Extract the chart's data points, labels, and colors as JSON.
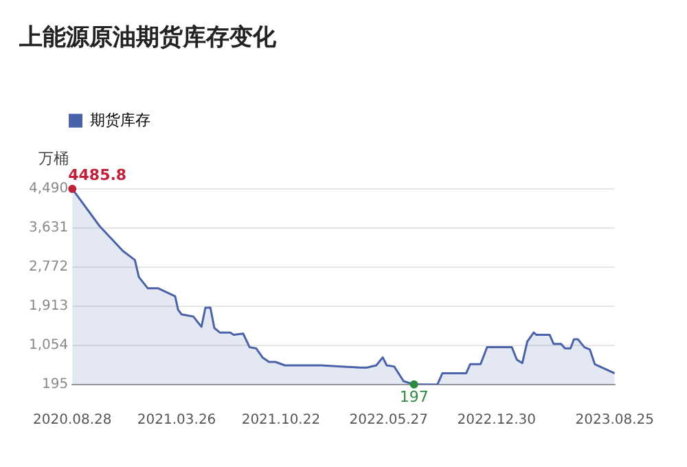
{
  "chart_data": {
    "type": "area",
    "title": "上能源原油期货库存变化",
    "ylabel": "万桶",
    "legend": "top left",
    "grid": "y",
    "marker": "none",
    "line_style": "solid",
    "x": [
      "2020-08-28",
      "2020-10-22",
      "2020-12-08",
      "2021-01-01",
      "2021-01-09",
      "2021-01-27",
      "2021-02-17",
      "2021-03-23",
      "2021-03-29",
      "2021-04-05",
      "2021-04-29",
      "2021-05-15",
      "2021-05-23",
      "2021-06-02",
      "2021-06-10",
      "2021-06-21",
      "2021-07-12",
      "2021-07-19",
      "2021-08-07",
      "2021-08-20",
      "2021-09-02",
      "2021-09-15",
      "2021-09-28",
      "2021-10-11",
      "2021-10-30",
      "2022-01-11",
      "2022-03-31",
      "2022-04-13",
      "2022-05-02",
      "2022-05-15",
      "2022-05-23",
      "2022-06-07",
      "2022-06-26",
      "2022-07-17",
      "2022-09-02",
      "2022-09-12",
      "2022-10-30",
      "2022-11-07",
      "2022-11-28",
      "2022-12-11",
      "2023-01-30",
      "2023-02-09",
      "2023-02-20",
      "2023-03-02",
      "2023-03-15",
      "2023-03-20",
      "2023-04-16",
      "2023-04-24",
      "2023-05-09",
      "2023-05-17",
      "2023-05-28",
      "2023-06-04",
      "2023-06-12",
      "2023-06-25",
      "2023-07-06",
      "2023-07-16",
      "2023-08-25"
    ],
    "series": [
      {
        "name": "期货库存",
        "color": "#4a62a8",
        "values": [
          4485.8,
          3670,
          3125,
          2926,
          2554,
          2306,
          2306,
          2132,
          1834,
          1735,
          1685,
          1461,
          1883,
          1883,
          1436,
          1337,
          1337,
          1288,
          1313,
          1014,
          990,
          791,
          692,
          692,
          617,
          617,
          567,
          567,
          617,
          791,
          617,
          592,
          270,
          197,
          195,
          443,
          443,
          642,
          642,
          1014,
          1014,
          741,
          667,
          1139,
          1337,
          1288,
          1288,
          1089,
          1089,
          990,
          990,
          1188,
          1188,
          1014,
          965,
          642,
          443
        ]
      }
    ],
    "xlim": [
      "2020-08-28",
      "2023-08-25"
    ],
    "xticks": [
      {
        "value": "2020-08-28",
        "label": "2020.08.28"
      },
      {
        "value": "2021-03-26",
        "label": "2021.03.26"
      },
      {
        "value": "2021-10-22",
        "label": "2021.10.22"
      },
      {
        "value": "2022-05-27",
        "label": "2022.05.27"
      },
      {
        "value": "2022-12-30",
        "label": "2022.12.30"
      },
      {
        "value": "2023-08-25",
        "label": "2023.08.25"
      }
    ],
    "ylim": [
      195,
      4490
    ],
    "yticks": [
      {
        "value": 195,
        "label": "195"
      },
      {
        "value": 1054,
        "label": "1,054"
      },
      {
        "value": 1913,
        "label": "1,913"
      },
      {
        "value": 2772,
        "label": "2,772"
      },
      {
        "value": 3631,
        "label": "3,631"
      },
      {
        "value": 4490,
        "label": "4,490"
      }
    ],
    "annotations": [
      {
        "text": "4485.8",
        "x": "2020-08-28",
        "y": 4485.8
      },
      {
        "text": "197",
        "x": "2022-07-17",
        "y": 197
      }
    ]
  }
}
